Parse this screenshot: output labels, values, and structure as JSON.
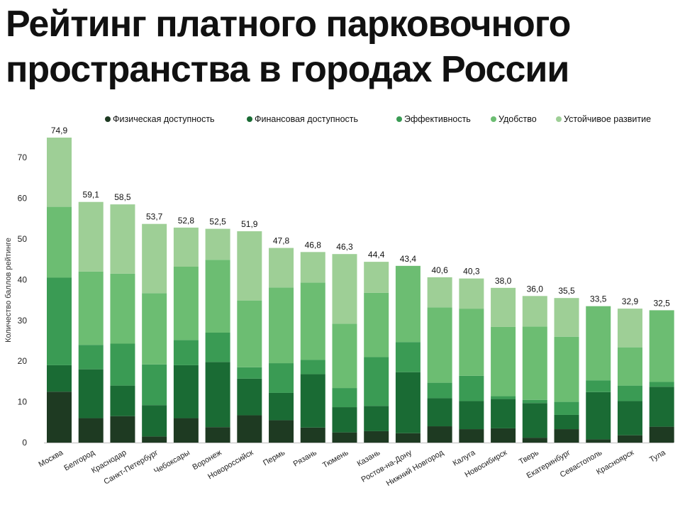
{
  "title_lines": [
    "Рейтинг платного парковочного",
    "пространства в городах России"
  ],
  "chart_data": {
    "type": "bar",
    "stacked": true,
    "title": "Рейтинг платного парковочного пространства в городах России",
    "ylabel": "Количество баллов рейтинге",
    "xlabel": "",
    "ylim": [
      0,
      75
    ],
    "yticks": [
      0,
      10,
      20,
      30,
      40,
      50,
      60,
      70
    ],
    "grid": false,
    "legend_position": "top-right",
    "categories": [
      "Москва",
      "Белгород",
      "Краснодар",
      "Санкт-Петербург",
      "Чебоксары",
      "Воронеж",
      "Новороссийск",
      "Пермь",
      "Рязань",
      "Тюмень",
      "Казань",
      "Ростов-на-Дону",
      "Нижний Новгород",
      "Калуга",
      "Новосибирск",
      "Тверь",
      "Екатеринбург",
      "Севастополь",
      "Красноярск",
      "Тула"
    ],
    "totals": [
      74.9,
      59.1,
      58.5,
      53.7,
      52.8,
      52.5,
      51.9,
      47.8,
      46.8,
      46.3,
      44.4,
      43.4,
      40.6,
      40.3,
      38.0,
      36.0,
      35.5,
      33.5,
      32.9,
      32.5
    ],
    "total_labels": [
      "74,9",
      "59,1",
      "58,5",
      "53,7",
      "52,8",
      "52,5",
      "51,9",
      "47,8",
      "46,8",
      "46,3",
      "44,4",
      "43,4",
      "40,6",
      "40,3",
      "38,0",
      "36,0",
      "35,5",
      "33,5",
      "32,9",
      "32,5"
    ],
    "series": [
      {
        "name": "Физическая доступность",
        "color": "#1e3a22",
        "values": [
          12.5,
          6.0,
          6.5,
          1.5,
          6.0,
          3.8,
          6.7,
          5.5,
          3.7,
          2.5,
          2.8,
          2.3,
          4.0,
          3.3,
          3.5,
          1.2,
          3.3,
          0.8,
          1.8,
          3.9
        ]
      },
      {
        "name": "Финансовая доступность",
        "color": "#1a6b34",
        "values": [
          6.5,
          12.0,
          7.5,
          7.7,
          13.0,
          16.0,
          9.0,
          6.7,
          13.1,
          6.2,
          6.2,
          15.0,
          6.9,
          6.9,
          7.2,
          8.5,
          3.5,
          11.6,
          8.4,
          9.8
        ]
      },
      {
        "name": "Эффективность",
        "color": "#3a9b54",
        "values": [
          21.5,
          6.0,
          10.3,
          10.0,
          6.2,
          7.2,
          2.8,
          7.3,
          3.5,
          4.7,
          12.0,
          7.4,
          3.8,
          6.2,
          0.7,
          0.8,
          3.2,
          2.9,
          3.8,
          1.2
        ]
      },
      {
        "name": "Удобство",
        "color": "#6cbd72",
        "values": [
          17.4,
          18.0,
          17.2,
          17.5,
          18.0,
          17.9,
          16.4,
          18.6,
          19.0,
          15.8,
          15.8,
          18.7,
          18.5,
          16.5,
          17.0,
          18.0,
          16.0,
          18.2,
          9.4,
          17.6
        ]
      },
      {
        "name": "Устойчивое развитие",
        "color": "#9ecf96",
        "values": [
          17.0,
          17.1,
          17.0,
          17.0,
          9.6,
          7.6,
          17.0,
          9.7,
          7.5,
          17.1,
          7.6,
          0.0,
          7.4,
          7.4,
          9.6,
          7.5,
          9.5,
          0.0,
          9.5,
          0.0
        ]
      }
    ]
  }
}
